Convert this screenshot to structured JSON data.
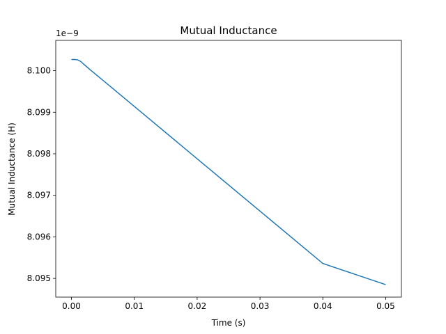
{
  "chart_data": {
    "type": "line",
    "title": "Mutual Inductance",
    "xlabel": "Time (s)",
    "ylabel": "Mutual Inductance (H)",
    "y_offset_label": "1e−9",
    "xlim": [
      -0.0025,
      0.0525
    ],
    "ylim": [
      8.09455,
      8.10073
    ],
    "x_ticks": [
      0.0,
      0.01,
      0.02,
      0.03,
      0.04,
      0.05
    ],
    "x_tick_labels": [
      "0.00",
      "0.01",
      "0.02",
      "0.03",
      "0.04",
      "0.05"
    ],
    "y_ticks": [
      8.095,
      8.096,
      8.097,
      8.098,
      8.099,
      8.1
    ],
    "y_tick_labels": [
      "8.095",
      "8.096",
      "8.097",
      "8.098",
      "8.099",
      "8.100"
    ],
    "grid": false,
    "series": [
      {
        "color": "#1f77b4",
        "x": [
          0.0,
          0.0005,
          0.001,
          0.0015,
          0.002,
          0.003,
          0.005,
          0.01,
          0.02,
          0.03,
          0.04,
          0.05
        ],
        "y": [
          8.10027,
          8.10027,
          8.10026,
          8.10022,
          8.10015,
          8.10002,
          8.09977,
          8.09914,
          8.09788,
          8.09662,
          8.09536,
          8.09485
        ]
      }
    ]
  }
}
